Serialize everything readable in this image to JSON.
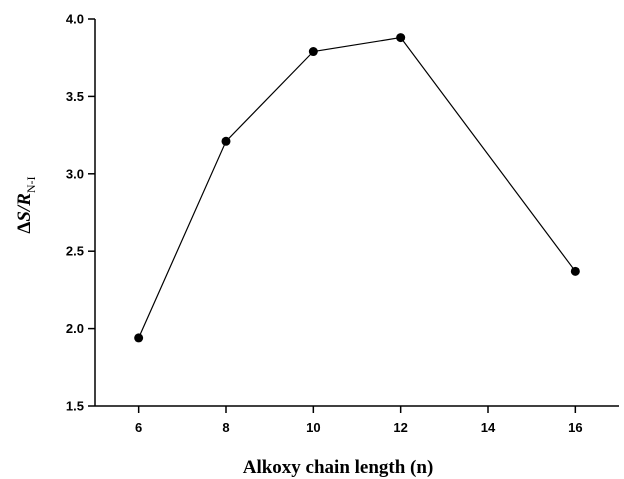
{
  "chart_data": {
    "type": "line",
    "xlabel": "Alkoxy chain length (n)",
    "ylabel": {
      "prefix": "Δ",
      "main": "S/R",
      "subscript": "N-I"
    },
    "x_ticks": [
      "6",
      "8",
      "10",
      "12",
      "14",
      "16"
    ],
    "y_ticks": [
      "1.5",
      "2.0",
      "2.5",
      "3.0",
      "3.5",
      "4.0"
    ],
    "xlim": [
      5,
      17
    ],
    "ylim": [
      1.5,
      4.0
    ],
    "grid": false,
    "series": [
      {
        "x": [
          6,
          8,
          10,
          12,
          16
        ],
        "y": [
          1.94,
          3.21,
          3.79,
          3.88,
          2.37
        ]
      }
    ],
    "line_color": "#000000",
    "marker_color": "#000000"
  }
}
